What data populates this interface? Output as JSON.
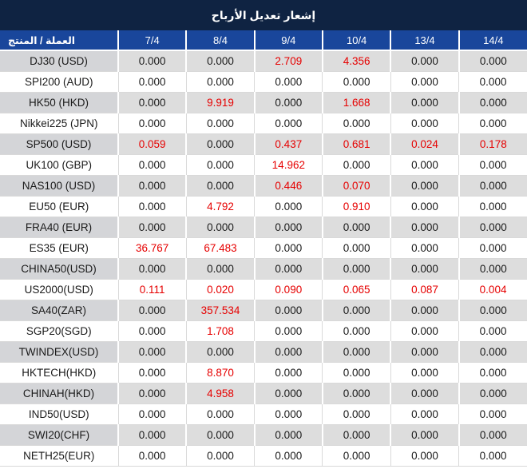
{
  "title": "إشعار تعديل الأرباح",
  "table": {
    "product_header": "العملة / المنتج",
    "date_headers": [
      "7/4",
      "8/4",
      "9/4",
      "10/4",
      "13/4",
      "14/4"
    ],
    "rows": [
      {
        "name": "DJ30 (USD)",
        "values": [
          "0.000",
          "0.000",
          "2.709",
          "4.356",
          "0.000",
          "0.000"
        ],
        "red": [
          false,
          false,
          true,
          true,
          false,
          false
        ]
      },
      {
        "name": "SPI200 (AUD)",
        "values": [
          "0.000",
          "0.000",
          "0.000",
          "0.000",
          "0.000",
          "0.000"
        ],
        "red": [
          false,
          false,
          false,
          false,
          false,
          false
        ]
      },
      {
        "name": "HK50 (HKD)",
        "values": [
          "0.000",
          "9.919",
          "0.000",
          "1.668",
          "0.000",
          "0.000"
        ],
        "red": [
          false,
          true,
          false,
          true,
          false,
          false
        ]
      },
      {
        "name": "Nikkei225 (JPN)",
        "values": [
          "0.000",
          "0.000",
          "0.000",
          "0.000",
          "0.000",
          "0.000"
        ],
        "red": [
          false,
          false,
          false,
          false,
          false,
          false
        ]
      },
      {
        "name": "SP500 (USD)",
        "values": [
          "0.059",
          "0.000",
          "0.437",
          "0.681",
          "0.024",
          "0.178"
        ],
        "red": [
          true,
          false,
          true,
          true,
          true,
          true
        ]
      },
      {
        "name": "UK100 (GBP)",
        "values": [
          "0.000",
          "0.000",
          "14.962",
          "0.000",
          "0.000",
          "0.000"
        ],
        "red": [
          false,
          false,
          true,
          false,
          false,
          false
        ]
      },
      {
        "name": "NAS100 (USD)",
        "values": [
          "0.000",
          "0.000",
          "0.446",
          "0.070",
          "0.000",
          "0.000"
        ],
        "red": [
          false,
          false,
          true,
          true,
          false,
          false
        ]
      },
      {
        "name": "EU50 (EUR)",
        "values": [
          "0.000",
          "4.792",
          "0.000",
          "0.910",
          "0.000",
          "0.000"
        ],
        "red": [
          false,
          true,
          false,
          true,
          false,
          false
        ]
      },
      {
        "name": "FRA40 (EUR)",
        "values": [
          "0.000",
          "0.000",
          "0.000",
          "0.000",
          "0.000",
          "0.000"
        ],
        "red": [
          false,
          false,
          false,
          false,
          false,
          false
        ]
      },
      {
        "name": "ES35 (EUR)",
        "values": [
          "36.767",
          "67.483",
          "0.000",
          "0.000",
          "0.000",
          "0.000"
        ],
        "red": [
          true,
          true,
          false,
          false,
          false,
          false
        ]
      },
      {
        "name": "CHINA50(USD)",
        "values": [
          "0.000",
          "0.000",
          "0.000",
          "0.000",
          "0.000",
          "0.000"
        ],
        "red": [
          false,
          false,
          false,
          false,
          false,
          false
        ]
      },
      {
        "name": "US2000(USD)",
        "values": [
          "0.111",
          "0.020",
          "0.090",
          "0.065",
          "0.087",
          "0.004"
        ],
        "red": [
          true,
          true,
          true,
          true,
          true,
          true
        ]
      },
      {
        "name": "SA40(ZAR)",
        "values": [
          "0.000",
          "357.534",
          "0.000",
          "0.000",
          "0.000",
          "0.000"
        ],
        "red": [
          false,
          true,
          false,
          false,
          false,
          false
        ]
      },
      {
        "name": "SGP20(SGD)",
        "values": [
          "0.000",
          "1.708",
          "0.000",
          "0.000",
          "0.000",
          "0.000"
        ],
        "red": [
          false,
          true,
          false,
          false,
          false,
          false
        ]
      },
      {
        "name": "TWINDEX(USD)",
        "values": [
          "0.000",
          "0.000",
          "0.000",
          "0.000",
          "0.000",
          "0.000"
        ],
        "red": [
          false,
          false,
          false,
          false,
          false,
          false
        ]
      },
      {
        "name": "HKTECH(HKD)",
        "values": [
          "0.000",
          "8.870",
          "0.000",
          "0.000",
          "0.000",
          "0.000"
        ],
        "red": [
          false,
          true,
          false,
          false,
          false,
          false
        ]
      },
      {
        "name": "CHINAH(HKD)",
        "values": [
          "0.000",
          "4.958",
          "0.000",
          "0.000",
          "0.000",
          "0.000"
        ],
        "red": [
          false,
          true,
          false,
          false,
          false,
          false
        ]
      },
      {
        "name": "IND50(USD)",
        "values": [
          "0.000",
          "0.000",
          "0.000",
          "0.000",
          "0.000",
          "0.000"
        ],
        "red": [
          false,
          false,
          false,
          false,
          false,
          false
        ]
      },
      {
        "name": "SWI20(CHF)",
        "values": [
          "0.000",
          "0.000",
          "0.000",
          "0.000",
          "0.000",
          "0.000"
        ],
        "red": [
          false,
          false,
          false,
          false,
          false,
          false
        ]
      },
      {
        "name": "NETH25(EUR)",
        "values": [
          "0.000",
          "0.000",
          "0.000",
          "0.000",
          "0.000",
          "0.000"
        ],
        "red": [
          false,
          false,
          false,
          false,
          false,
          false
        ]
      }
    ]
  },
  "colors": {
    "title_bar_bg": "#0f2342",
    "header_bg": "#19469b",
    "row_alt_bg": "#dddddd",
    "name_alt_bg": "#d4d5d8",
    "grid_line": "#d9d9d9",
    "red_value": "#e60000",
    "text": "#1a1a1a"
  }
}
